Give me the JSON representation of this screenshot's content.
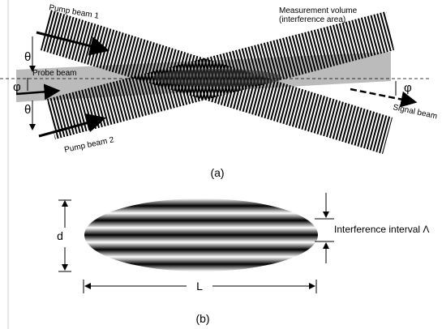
{
  "panel_a": {
    "pump_beam_1": "Pump beam 1",
    "measurement_volume": "Measurement volume",
    "interference_area": "(interference area)",
    "theta_top": "θ",
    "probe_beam": "Probe beam",
    "phi_left": "φ",
    "theta_bottom": "θ",
    "pump_beam_2": "Pump beam 2",
    "phi_right": "φ",
    "signal_beam": "Signal beam",
    "caption": "(a)"
  },
  "panel_b": {
    "d": "d",
    "interference_interval": "Interference interval Λ",
    "L": "L",
    "caption": "(b)"
  }
}
